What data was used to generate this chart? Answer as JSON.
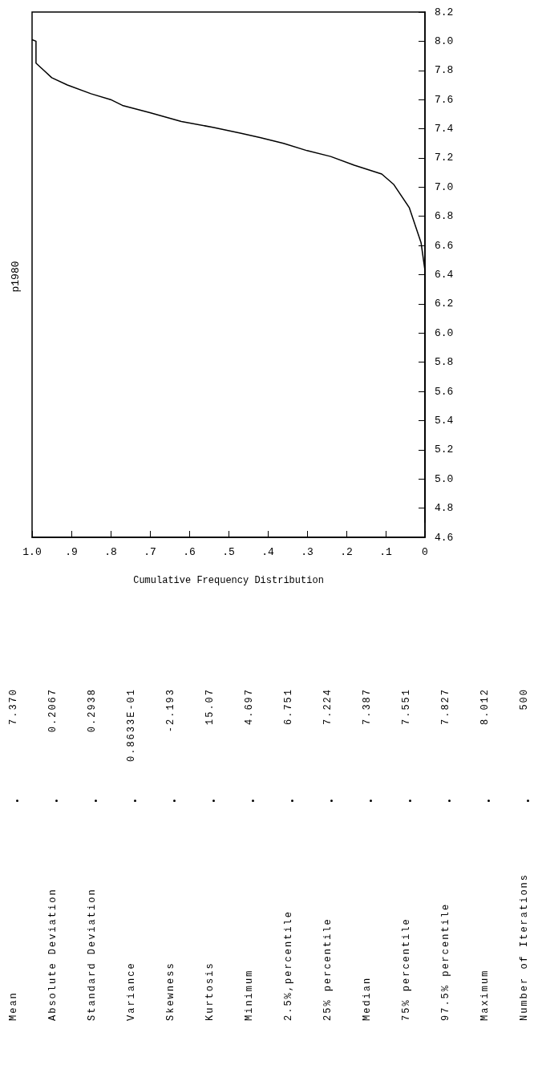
{
  "chart_data": [
    {
      "type": "line",
      "title": "p1980",
      "xlabel": "Cumulative Frequency Distribution",
      "color": "#000000",
      "x": [
        0,
        0,
        0,
        0.01,
        0.04,
        0.08,
        0.11,
        0.18,
        0.24,
        0.3,
        0.36,
        0.42,
        0.47,
        0.54,
        0.62,
        0.7,
        0.77,
        0.8,
        0.85,
        0.91,
        0.95,
        0.97,
        0.99,
        0.99,
        1
      ],
      "values": [
        4.7,
        6.0,
        6.43,
        6.62,
        6.86,
        7.02,
        7.09,
        7.15,
        7.21,
        7.25,
        7.3,
        7.34,
        7.37,
        7.41,
        7.45,
        7.51,
        7.56,
        7.6,
        7.64,
        7.7,
        7.75,
        7.8,
        7.85,
        8.0,
        8.01
      ],
      "xlim": [
        1,
        0
      ],
      "xticks": [
        0,
        {
          "value": 0.1,
          "label": ".1"
        },
        {
          "value": 0.2,
          "label": ".2"
        },
        {
          "value": 0.3,
          "label": ".3"
        },
        {
          "value": 0.4,
          "label": ".4"
        },
        {
          "value": 0.5,
          "label": ".5"
        },
        {
          "value": 0.6,
          "label": ".6"
        },
        {
          "value": 0.7,
          "label": ".7"
        },
        {
          "value": 0.8,
          "label": ".8"
        },
        {
          "value": 0.9,
          "label": ".9"
        },
        {
          "value": 1,
          "label": "1.0"
        }
      ],
      "ylim": [
        4.6,
        8.2
      ],
      "yticks": [
        4.6,
        4.8,
        {
          "value": 5,
          "label": "5.0"
        },
        5.2,
        5.4,
        5.6,
        5.8,
        {
          "value": 6,
          "label": "6.0"
        },
        6.2,
        6.4,
        6.6,
        6.8,
        {
          "value": 7,
          "label": "7.0"
        },
        7.2,
        7.4,
        7.6,
        7.8,
        {
          "value": 8,
          "label": "8.0"
        },
        8.2
      ]
    },
    {
      "type": "other",
      "categories": [
        "Mean",
        "Absolute Deviation",
        "Standard Deviation",
        "Variance",
        "Skewness",
        "Kurtosis",
        "Minimum",
        "2.5%,percentile",
        "25% percentile",
        "Median",
        "75% percentile",
        "97.5% percentile",
        "Maximum",
        "Number of Iterations"
      ],
      "value_labels": [
        "7.370",
        "0.2067",
        "0.2938",
        "0.8633E-01",
        "-2.193",
        "15.07",
        "4.697",
        "6.751",
        "7.224",
        "7.387",
        "7.551",
        "7.827",
        "8.012",
        "500"
      ]
    }
  ]
}
